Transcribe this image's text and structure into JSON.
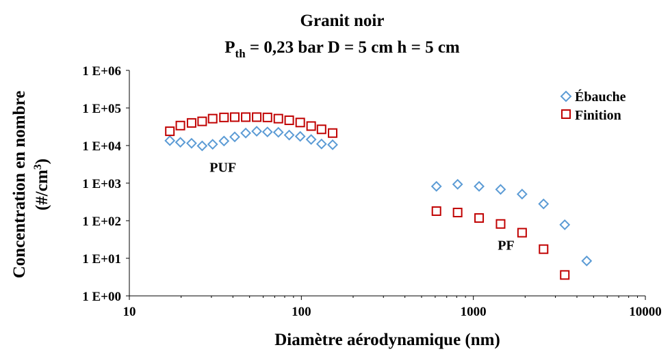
{
  "chart_data": {
    "type": "scatter",
    "title": "Granit noir",
    "subtitle": {
      "base": "P",
      "sub": "th",
      "rest": " = 0,23 bar D = 5 cm h = 5 cm"
    },
    "xlabel": "Diamètre aérodynamique (nm)",
    "ylabel_line1": "Concentration en nombre",
    "ylabel_line2": {
      "pre": "(#/cm",
      "sup": "3",
      "post": ")"
    },
    "x_scale": "log",
    "y_scale": "log",
    "xlim": [
      10,
      10000
    ],
    "ylim": [
      1,
      1000000
    ],
    "x_ticks": [
      {
        "value": 10,
        "label": "10"
      },
      {
        "value": 100,
        "label": "100"
      },
      {
        "value": 1000,
        "label": "1000"
      },
      {
        "value": 10000,
        "label": "10000"
      }
    ],
    "y_ticks": [
      {
        "value": 1,
        "label": "1 E+00"
      },
      {
        "value": 10,
        "label": "1 E+01"
      },
      {
        "value": 100,
        "label": "1 E+02"
      },
      {
        "value": 1000,
        "label": "1 E+03"
      },
      {
        "value": 10000,
        "label": "1 E+04"
      },
      {
        "value": 100000,
        "label": "1 E+05"
      },
      {
        "value": 1000000,
        "label": "1 E+06"
      }
    ],
    "grid": false,
    "legend_position": "top-right",
    "series": [
      {
        "name": "Ébauche",
        "marker": "diamond",
        "color": "#5B9BD5",
        "points": [
          [
            17.2,
            13500
          ],
          [
            19.8,
            12200
          ],
          [
            23.0,
            11500
          ],
          [
            26.5,
            9800
          ],
          [
            30.5,
            10800
          ],
          [
            35.5,
            13200
          ],
          [
            41.0,
            17000
          ],
          [
            47.5,
            21500
          ],
          [
            55.0,
            24000
          ],
          [
            63.5,
            23000
          ],
          [
            73.5,
            22500
          ],
          [
            85.0,
            19000
          ],
          [
            98.5,
            17500
          ],
          [
            114,
            14500
          ],
          [
            131,
            11000
          ],
          [
            152,
            10500
          ],
          [
            610,
            820
          ],
          [
            810,
            930
          ],
          [
            1080,
            820
          ],
          [
            1440,
            680
          ],
          [
            1920,
            510
          ],
          [
            2560,
            280
          ],
          [
            3400,
            78
          ],
          [
            4560,
            8.5
          ]
        ]
      },
      {
        "name": "Finition",
        "marker": "square",
        "color": "#C00000",
        "points": [
          [
            17.2,
            24000
          ],
          [
            19.8,
            34000
          ],
          [
            23.0,
            40000
          ],
          [
            26.5,
            44000
          ],
          [
            30.5,
            52000
          ],
          [
            35.5,
            56000
          ],
          [
            41.0,
            57000
          ],
          [
            47.5,
            57000
          ],
          [
            55.0,
            57000
          ],
          [
            63.5,
            56000
          ],
          [
            73.5,
            52000
          ],
          [
            85.0,
            47000
          ],
          [
            98.5,
            41000
          ],
          [
            114,
            33000
          ],
          [
            131,
            27000
          ],
          [
            152,
            21500
          ],
          [
            610,
            180
          ],
          [
            810,
            165
          ],
          [
            1080,
            118
          ],
          [
            1440,
            82
          ],
          [
            1920,
            48
          ],
          [
            2560,
            17.5
          ],
          [
            3400,
            3.6
          ]
        ]
      }
    ],
    "annotations": [
      {
        "text": "PUF",
        "x": 35,
        "y": 2000
      },
      {
        "text": "PF",
        "x": 1550,
        "y": 17
      }
    ]
  }
}
